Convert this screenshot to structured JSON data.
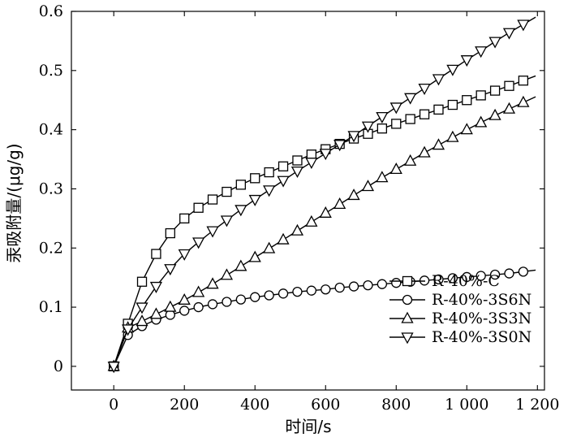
{
  "chart_data": {
    "type": "line",
    "xlabel": "时间/s",
    "ylabel": "汞吸附量/(μg/g)",
    "xlim": [
      -120,
      1220
    ],
    "ylim": [
      -0.04,
      0.6
    ],
    "xticks": [
      0,
      200,
      400,
      600,
      800,
      1000,
      1200
    ],
    "xtick_labels": [
      "0",
      "200",
      "400",
      "600",
      "800",
      "1 000",
      "1 200"
    ],
    "yticks": [
      0,
      0.1,
      0.2,
      0.3,
      0.4,
      0.5,
      0.6
    ],
    "ytick_labels": [
      "0",
      "0.1",
      "0.2",
      "0.3",
      "0.4",
      "0.5",
      "0.6"
    ],
    "grid": false,
    "legend_position": "bottom-right",
    "series": [
      {
        "name": "R-40%-C",
        "marker": "square",
        "x": [
          0,
          40,
          80,
          120,
          160,
          200,
          240,
          280,
          320,
          360,
          400,
          440,
          480,
          520,
          560,
          600,
          640,
          680,
          720,
          760,
          800,
          840,
          880,
          920,
          960,
          1000,
          1040,
          1080,
          1120,
          1160
        ],
        "y": [
          0,
          0.072,
          0.143,
          0.19,
          0.225,
          0.25,
          0.268,
          0.282,
          0.295,
          0.307,
          0.318,
          0.328,
          0.338,
          0.348,
          0.358,
          0.367,
          0.376,
          0.385,
          0.393,
          0.402,
          0.41,
          0.418,
          0.426,
          0.434,
          0.442,
          0.45,
          0.458,
          0.466,
          0.474,
          0.483
        ]
      },
      {
        "name": "R-40%-3S6N",
        "marker": "circle",
        "x": [
          0,
          40,
          80,
          120,
          160,
          200,
          240,
          280,
          320,
          360,
          400,
          440,
          480,
          520,
          560,
          600,
          640,
          680,
          720,
          760,
          800,
          840,
          880,
          920,
          960,
          1000,
          1040,
          1080,
          1120,
          1160
        ],
        "y": [
          0,
          0.053,
          0.068,
          0.079,
          0.087,
          0.094,
          0.1,
          0.105,
          0.109,
          0.113,
          0.117,
          0.12,
          0.123,
          0.126,
          0.128,
          0.13,
          0.133,
          0.135,
          0.137,
          0.139,
          0.141,
          0.143,
          0.145,
          0.147,
          0.149,
          0.151,
          0.153,
          0.155,
          0.157,
          0.16
        ]
      },
      {
        "name": "R-40%-3S3N",
        "marker": "triangle-up",
        "x": [
          0,
          40,
          80,
          120,
          160,
          200,
          240,
          280,
          320,
          360,
          400,
          440,
          480,
          520,
          560,
          600,
          640,
          680,
          720,
          760,
          800,
          840,
          880,
          920,
          960,
          1000,
          1040,
          1080,
          1120,
          1160
        ],
        "y": [
          0,
          0.065,
          0.076,
          0.088,
          0.1,
          0.112,
          0.125,
          0.139,
          0.154,
          0.169,
          0.184,
          0.199,
          0.214,
          0.229,
          0.244,
          0.259,
          0.274,
          0.289,
          0.304,
          0.319,
          0.333,
          0.347,
          0.361,
          0.374,
          0.387,
          0.4,
          0.412,
          0.424,
          0.435,
          0.446
        ]
      },
      {
        "name": "R-40%-3S0N",
        "marker": "triangle-down",
        "x": [
          0,
          40,
          80,
          120,
          160,
          200,
          240,
          280,
          320,
          360,
          400,
          440,
          480,
          520,
          560,
          600,
          640,
          680,
          720,
          760,
          800,
          840,
          880,
          920,
          960,
          1000,
          1040,
          1080,
          1120,
          1160
        ],
        "y": [
          0,
          0.063,
          0.1,
          0.135,
          0.165,
          0.19,
          0.21,
          0.229,
          0.247,
          0.265,
          0.282,
          0.298,
          0.314,
          0.33,
          0.345,
          0.36,
          0.375,
          0.39,
          0.406,
          0.422,
          0.438,
          0.454,
          0.47,
          0.486,
          0.502,
          0.518,
          0.533,
          0.549,
          0.564,
          0.578
        ]
      }
    ]
  }
}
